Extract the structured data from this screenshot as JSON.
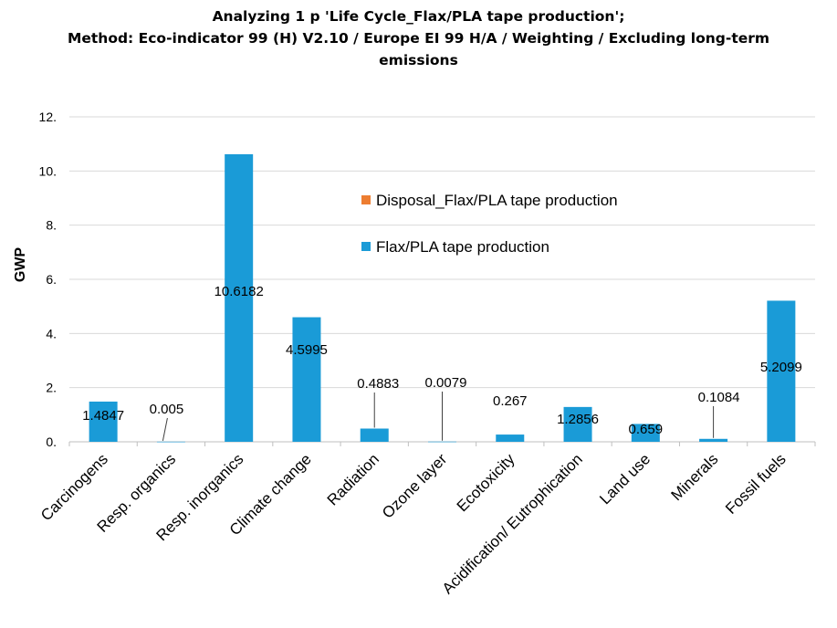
{
  "chart_data": {
    "type": "bar",
    "title_lines": [
      "Analyzing 1 p 'Life Cycle_Flax/PLA tape production';",
      "Method: Eco-indicator 99 (H) V2.10 / Europe EI 99 H/A / Weighting / Excluding long-term",
      "emissions"
    ],
    "xlabel": "",
    "ylabel": "GWP",
    "ylim": [
      0,
      12
    ],
    "yticks": [
      "0.",
      "2.",
      "4.",
      "6.",
      "8.",
      "10.",
      "12."
    ],
    "grid": true,
    "legend_position": "center-right",
    "categories": [
      "Carcinogens",
      "Resp. organics",
      "Resp. inorganics",
      "Climate change",
      "Radiation",
      "Ozone layer",
      "Ecotoxicity",
      "Acidification/ Eutrophication",
      "Land use",
      "Minerals",
      "Fossil fuels"
    ],
    "series": [
      {
        "name": "Disposal_Flax/PLA tape production",
        "color": "#ed7d31",
        "values": [
          0,
          0,
          0,
          0,
          0,
          0,
          0,
          0,
          0,
          0,
          0
        ]
      },
      {
        "name": "Flax/PLA tape production",
        "color": "#1a9bd7",
        "values": [
          1.4847,
          0.005,
          10.6182,
          4.5995,
          0.4883,
          0.0079,
          0.267,
          1.2856,
          0.659,
          0.1084,
          5.2099
        ],
        "labels": [
          "1.4847",
          "0.005",
          "10.6182",
          "4.5995",
          "0.4883",
          "0.0079",
          "0.267",
          "1.2856",
          "0.659",
          "0.1084",
          "5.2099"
        ]
      }
    ]
  }
}
